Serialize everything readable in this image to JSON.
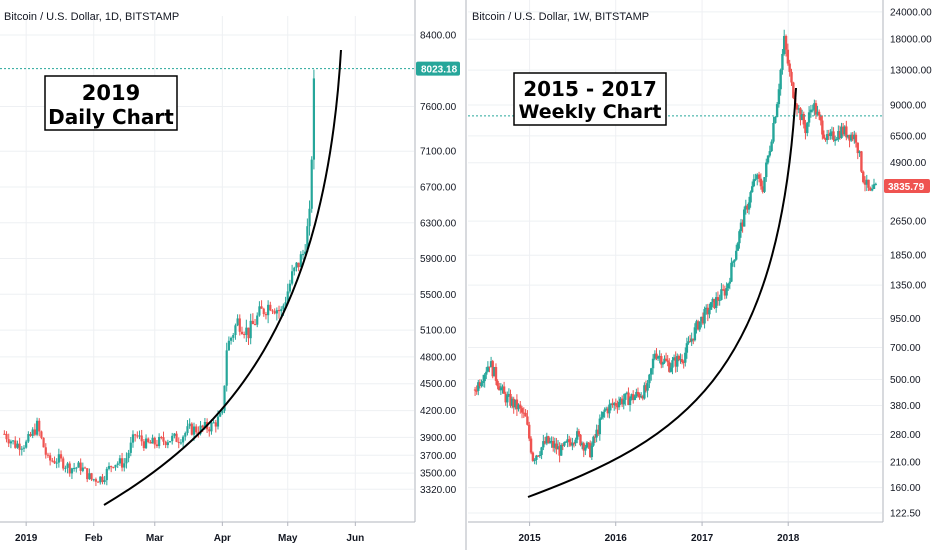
{
  "colors": {
    "up": "#26a69a",
    "down": "#ef5350",
    "grid": "#eef0f3",
    "axis": "#b2b5be",
    "price_line": "#26a69a",
    "curve": "#000000"
  },
  "chart_data": [
    {
      "type": "candlestick",
      "title": "Bitcoin / U.S. Dollar, 1D, BITSTAMP",
      "annotation": [
        "2019",
        "Daily Chart"
      ],
      "y_scale": "linear",
      "ylim": [
        3200,
        8500
      ],
      "y_ticks": [
        "8400.00",
        "7600.00",
        "7100.00",
        "6700.00",
        "6300.00",
        "5900.00",
        "5500.00",
        "5100.00",
        "4800.00",
        "4500.00",
        "4200.00",
        "3900.00",
        "3700.00",
        "3500.00",
        "3320.00"
      ],
      "x_ticks": [
        "2019",
        "Feb",
        "Mar",
        "Apr",
        "May",
        "Jun"
      ],
      "last_price": "8023.18",
      "series": [
        {
          "date": "2018-12-22",
          "close": 3940
        },
        {
          "date": "2018-12-27",
          "close": 3820
        },
        {
          "date": "2019-01-01",
          "close": 3830
        },
        {
          "date": "2019-01-06",
          "close": 4030
        },
        {
          "date": "2019-01-11",
          "close": 3640
        },
        {
          "date": "2019-01-16",
          "close": 3650
        },
        {
          "date": "2019-01-21",
          "close": 3560
        },
        {
          "date": "2019-01-26",
          "close": 3570
        },
        {
          "date": "2019-01-31",
          "close": 3430
        },
        {
          "date": "2019-02-05",
          "close": 3450
        },
        {
          "date": "2019-02-10",
          "close": 3620
        },
        {
          "date": "2019-02-15",
          "close": 3610
        },
        {
          "date": "2019-02-20",
          "close": 3930
        },
        {
          "date": "2019-02-25",
          "close": 3820
        },
        {
          "date": "2019-03-02",
          "close": 3840
        },
        {
          "date": "2019-03-07",
          "close": 3880
        },
        {
          "date": "2019-03-12",
          "close": 3890
        },
        {
          "date": "2019-03-17",
          "close": 3990
        },
        {
          "date": "2019-03-22",
          "close": 3990
        },
        {
          "date": "2019-03-27",
          "close": 4030
        },
        {
          "date": "2019-04-01",
          "close": 4140
        },
        {
          "date": "2019-04-03",
          "close": 4900
        },
        {
          "date": "2019-04-08",
          "close": 5200
        },
        {
          "date": "2019-04-13",
          "close": 5070
        },
        {
          "date": "2019-04-18",
          "close": 5280
        },
        {
          "date": "2019-04-23",
          "close": 5400
        },
        {
          "date": "2019-04-28",
          "close": 5300
        },
        {
          "date": "2019-05-03",
          "close": 5700
        },
        {
          "date": "2019-05-08",
          "close": 5950
        },
        {
          "date": "2019-05-11",
          "close": 6350
        },
        {
          "date": "2019-05-13",
          "close": 7800
        },
        {
          "date": "2019-05-14",
          "close": 8023
        }
      ]
    },
    {
      "type": "candlestick",
      "title": "Bitcoin / U.S. Dollar, 1W, BITSTAMP",
      "annotation": [
        "2015 - 2017",
        "Weekly Chart"
      ],
      "y_scale": "log",
      "ylim": [
        115,
        25000
      ],
      "y_ticks": [
        "24000.00",
        "18000.00",
        "13000.00",
        "9000.00",
        "6500.00",
        "4900.00",
        "3835.79",
        "2650.00",
        "1850.00",
        "1350.00",
        "950.00",
        "700.00",
        "500.00",
        "380.00",
        "280.00",
        "210.00",
        "160.00",
        "122.50"
      ],
      "x_ticks": [
        "2015",
        "2016",
        "2017",
        "2018"
      ],
      "last_price": "3835.79",
      "series": [
        {
          "date": "2014-05",
          "close": 450
        },
        {
          "date": "2014-07",
          "close": 600
        },
        {
          "date": "2014-09",
          "close": 420
        },
        {
          "date": "2014-11",
          "close": 370
        },
        {
          "date": "2014-12",
          "close": 330
        },
        {
          "date": "2015-01",
          "close": 220
        },
        {
          "date": "2015-03",
          "close": 260
        },
        {
          "date": "2015-05",
          "close": 235
        },
        {
          "date": "2015-07",
          "close": 280
        },
        {
          "date": "2015-09",
          "close": 235
        },
        {
          "date": "2015-11",
          "close": 360
        },
        {
          "date": "2016-01",
          "close": 400
        },
        {
          "date": "2016-03",
          "close": 415
        },
        {
          "date": "2016-05",
          "close": 450
        },
        {
          "date": "2016-06",
          "close": 670
        },
        {
          "date": "2016-08",
          "close": 580
        },
        {
          "date": "2016-10",
          "close": 640
        },
        {
          "date": "2016-12",
          "close": 900
        },
        {
          "date": "2017-02",
          "close": 1100
        },
        {
          "date": "2017-04",
          "close": 1300
        },
        {
          "date": "2017-06",
          "close": 2500
        },
        {
          "date": "2017-08",
          "close": 4200
        },
        {
          "date": "2017-09",
          "close": 3800
        },
        {
          "date": "2017-10",
          "close": 5800
        },
        {
          "date": "2017-11",
          "close": 9500
        },
        {
          "date": "2017-12",
          "close": 17800
        },
        {
          "date": "2018-01",
          "close": 11000
        },
        {
          "date": "2018-02",
          "close": 8500
        },
        {
          "date": "2018-03",
          "close": 7000
        },
        {
          "date": "2018-04",
          "close": 9200
        },
        {
          "date": "2018-06",
          "close": 6200
        },
        {
          "date": "2018-08",
          "close": 6900
        },
        {
          "date": "2018-10",
          "close": 6400
        },
        {
          "date": "2018-11",
          "close": 4200
        },
        {
          "date": "2018-12",
          "close": 3500
        },
        {
          "date": "2019-01",
          "close": 3835
        }
      ]
    }
  ]
}
